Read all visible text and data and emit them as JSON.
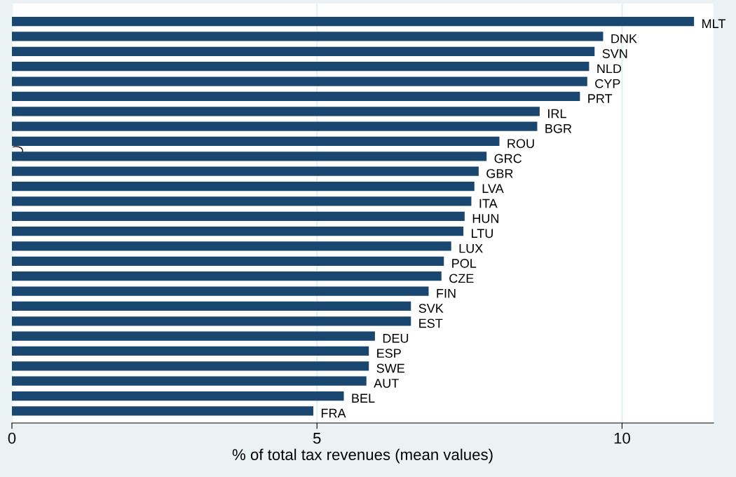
{
  "chart_data": {
    "type": "bar",
    "orientation": "horizontal",
    "xlabel": "% of total tax revenues (mean values)",
    "categories": [
      "MLT",
      "DNK",
      "SVN",
      "NLD",
      "CYP",
      "PRT",
      "IRL",
      "BGR",
      "ROU",
      "GRC",
      "GBR",
      "LVA",
      "ITA",
      "HUN",
      "LTU",
      "LUX",
      "POL",
      "CZE",
      "FIN",
      "SVK",
      "EST",
      "DEU",
      "ESP",
      "SWE",
      "AUT",
      "BEL",
      "FRA"
    ],
    "values": [
      11.18,
      9.69,
      9.55,
      9.46,
      9.43,
      9.31,
      8.65,
      8.61,
      7.99,
      7.78,
      7.65,
      7.58,
      7.53,
      7.42,
      7.4,
      7.2,
      7.08,
      7.04,
      6.83,
      6.54,
      6.54,
      5.95,
      5.85,
      5.85,
      5.81,
      5.44,
      4.94
    ],
    "color": "#1a476f",
    "xlim": [
      0,
      11.5
    ],
    "xticks": [
      0,
      5,
      10
    ],
    "grid": "x",
    "tick_labels": "x"
  }
}
